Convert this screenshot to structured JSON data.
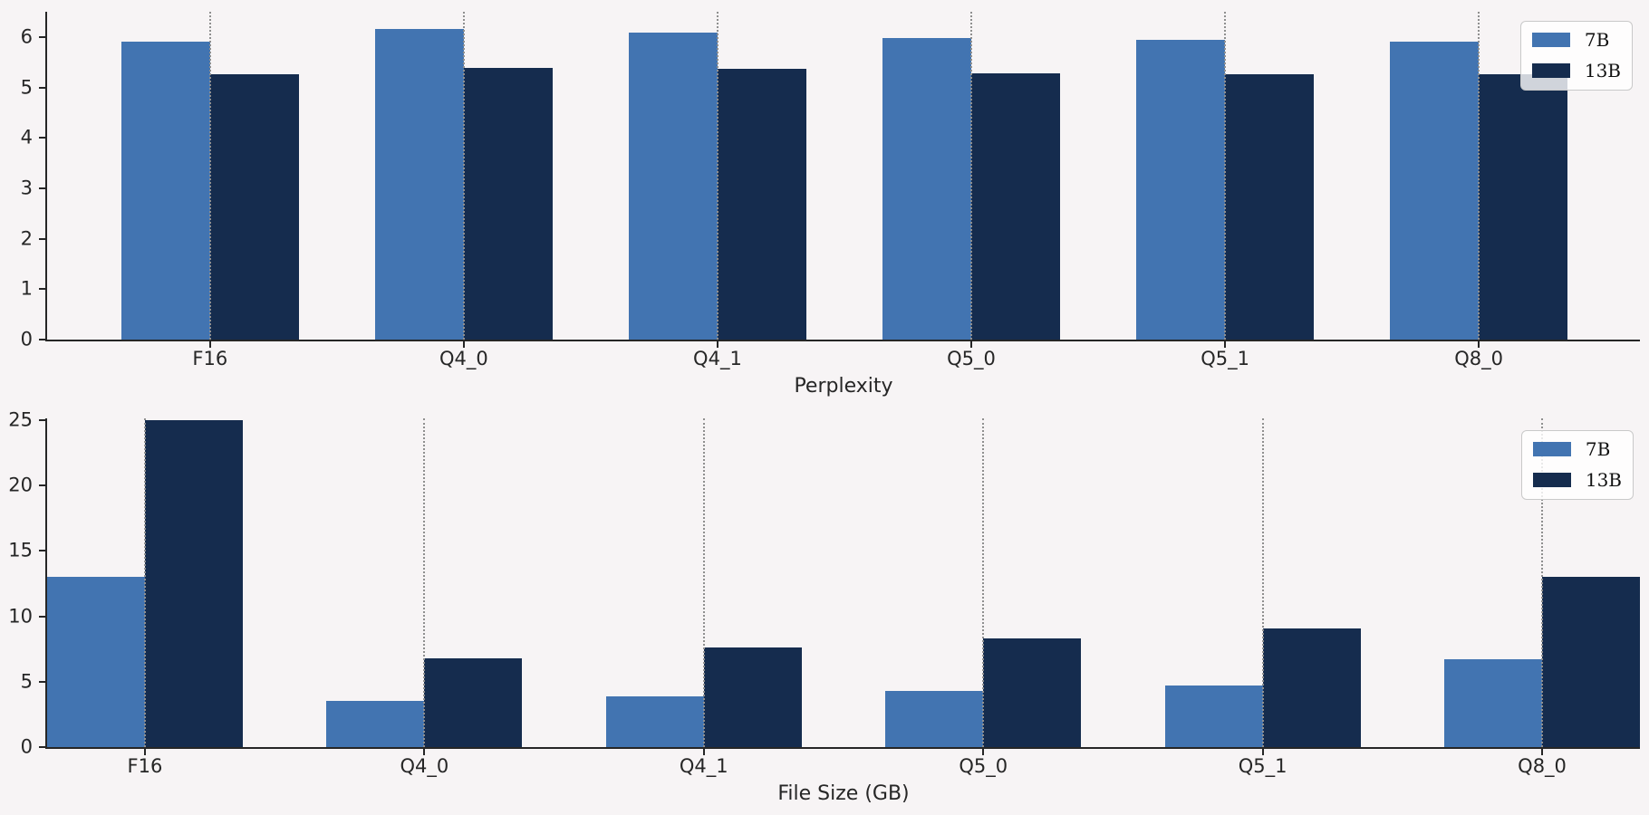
{
  "figure": {
    "background": "#f7f4f5",
    "axis_color": "#262626",
    "gridline_color": "#8f8f8f",
    "legend_border_color": "#c9c9c9"
  },
  "chart_data": [
    {
      "type": "bar",
      "title": "",
      "xlabel": "Perplexity",
      "ylabel": "",
      "categories": [
        "F16",
        "Q4_0",
        "Q4_1",
        "Q5_0",
        "Q5_1",
        "Q8_0"
      ],
      "series": [
        {
          "name": "7B",
          "color": "#4274b1",
          "values": [
            5.9066,
            6.1565,
            6.0912,
            5.9862,
            5.9481,
            5.907
          ]
        },
        {
          "name": "13B",
          "color": "#152c4e",
          "values": [
            5.2543,
            5.386,
            5.3608,
            5.2856,
            5.2689,
            5.2547
          ]
        }
      ],
      "yticks": [
        0,
        1,
        2,
        3,
        4,
        5,
        6
      ],
      "ylim": [
        0,
        6.5
      ],
      "xlim": [
        -0.642,
        5.635
      ],
      "bar_width": 0.35,
      "grid": "dotted-vertical-line-at-each-category",
      "legend_position": "upper-right"
    },
    {
      "type": "bar",
      "title": "",
      "xlabel": "File Size (GB)",
      "ylabel": "",
      "categories": [
        "F16",
        "Q4_0",
        "Q4_1",
        "Q5_0",
        "Q5_1",
        "Q8_0"
      ],
      "series": [
        {
          "name": "7B",
          "color": "#4274b1",
          "values": [
            13.0,
            3.5,
            3.9,
            4.3,
            4.7,
            6.7
          ]
        },
        {
          "name": "13B",
          "color": "#152c4e",
          "values": [
            25.0,
            6.8,
            7.6,
            8.3,
            9.1,
            13.0
          ]
        }
      ],
      "yticks": [
        0,
        5,
        10,
        15,
        20,
        25
      ],
      "ylim": [
        0,
        25.15
      ],
      "xlim": [
        -0.35,
        5.35
      ],
      "bar_width": 0.35,
      "grid": "dotted-vertical-line-at-each-category",
      "legend_position": "upper-right"
    }
  ]
}
